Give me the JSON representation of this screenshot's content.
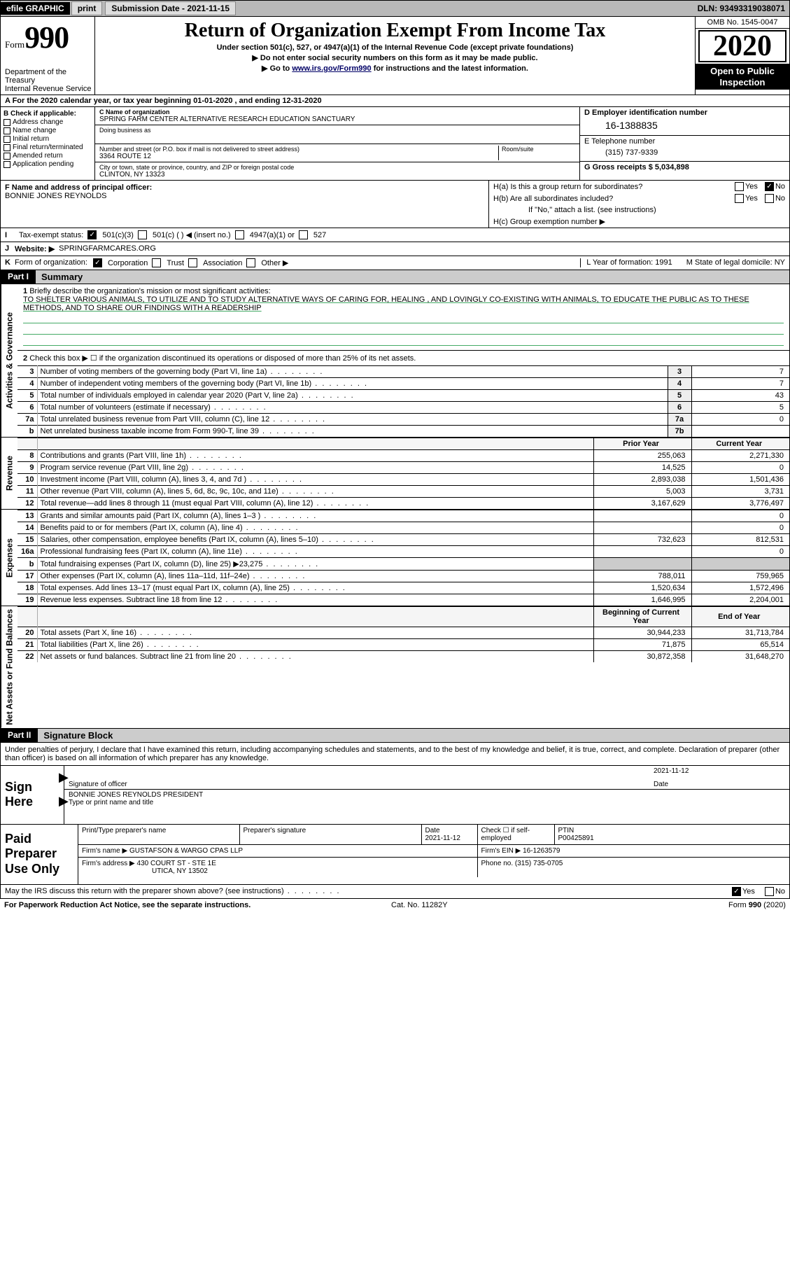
{
  "topbar": {
    "efile": "efile GRAPHIC",
    "print": "print",
    "submission_label": "Submission Date - 2021-11-15",
    "dln": "DLN: 93493319038071"
  },
  "header": {
    "form_small": "Form",
    "form_big": "990",
    "dept1": "Department of the Treasury",
    "dept2": "Internal Revenue Service",
    "title": "Return of Organization Exempt From Income Tax",
    "sub1": "Under section 501(c), 527, or 4947(a)(1) of the Internal Revenue Code (except private foundations)",
    "sub2": "▶ Do not enter social security numbers on this form as it may be made public.",
    "sub3_pre": "▶ Go to ",
    "sub3_link": "www.irs.gov/Form990",
    "sub3_post": " for instructions and the latest information.",
    "omb": "OMB No. 1545-0047",
    "year": "2020",
    "open1": "Open to Public",
    "open2": "Inspection"
  },
  "lineA": "A For the 2020 calendar year, or tax year beginning 01-01-2020    , and ending 12-31-2020",
  "colB": {
    "title": "B Check if applicable:",
    "items": [
      "Address change",
      "Name change",
      "Initial return",
      "Final return/terminated",
      "Amended return",
      "Application pending"
    ]
  },
  "colC": {
    "name_label": "C Name of organization",
    "name": "SPRING FARM CENTER ALTERNATIVE RESEARCH EDUCATION SANCTUARY",
    "dba_label": "Doing business as",
    "street_label": "Number and street (or P.O. box if mail is not delivered to street address)",
    "room_label": "Room/suite",
    "street": "3364 ROUTE 12",
    "city_label": "City or town, state or province, country, and ZIP or foreign postal code",
    "city": "CLINTON, NY  13323"
  },
  "colD": {
    "ein_label": "D Employer identification number",
    "ein": "16-1388835",
    "phone_label": "E Telephone number",
    "phone": "(315) 737-9339",
    "gross_label": "G Gross receipts $ 5,034,898"
  },
  "lineF": {
    "label": "F  Name and address of principal officer:",
    "name": "BONNIE JONES REYNOLDS"
  },
  "lineH": {
    "a": "H(a)  Is this a group return for subordinates?",
    "b": "H(b)  Are all subordinates included?",
    "b_note": "If \"No,\" attach a list. (see instructions)",
    "c": "H(c)  Group exemption number ▶",
    "yes": "Yes",
    "no": "No"
  },
  "lineI": {
    "lbl": "I",
    "text": "Tax-exempt status:",
    "opt1": "501(c)(3)",
    "opt2": "501(c) (  ) ◀ (insert no.)",
    "opt3": "4947(a)(1) or",
    "opt4": "527"
  },
  "lineJ": {
    "lbl": "J",
    "text": "Website: ▶",
    "url": "SPRINGFARMCARES.ORG"
  },
  "lineK": {
    "lbl": "K",
    "text": "Form of organization:",
    "opts": [
      "Corporation",
      "Trust",
      "Association",
      "Other ▶"
    ]
  },
  "lineLM": {
    "l": "L Year of formation: 1991",
    "m": "M State of legal domicile: NY"
  },
  "part1": {
    "header": "Part I",
    "title": "Summary",
    "vert_gov": "Activities & Governance",
    "vert_rev": "Revenue",
    "vert_exp": "Expenses",
    "vert_net": "Net Assets or Fund Balances",
    "line1_label": "1",
    "line1_text": "Briefly describe the organization's mission or most significant activities:",
    "mission": "TO SHELTER VARIOUS ANIMALS, TO UTILIZE AND TO STUDY ALTERNATIVE WAYS OF CARING FOR, HEALING , AND LOVINGLY CO-EXISTING WITH ANIMALS, TO EDUCATE THE PUBLIC AS TO THESE METHODS, AND TO SHARE OUR FINDINGS WITH A READERSHIP",
    "line2": "Check this box ▶ ☐  if the organization discontinued its operations or disposed of more than 25% of its net assets.",
    "rows_gov": [
      {
        "n": "3",
        "label": "Number of voting members of the governing body (Part VI, line 1a)",
        "box": "3",
        "val": "7"
      },
      {
        "n": "4",
        "label": "Number of independent voting members of the governing body (Part VI, line 1b)",
        "box": "4",
        "val": "7"
      },
      {
        "n": "5",
        "label": "Total number of individuals employed in calendar year 2020 (Part V, line 2a)",
        "box": "5",
        "val": "43"
      },
      {
        "n": "6",
        "label": "Total number of volunteers (estimate if necessary)",
        "box": "6",
        "val": "5"
      },
      {
        "n": "7a",
        "label": "Total unrelated business revenue from Part VIII, column (C), line 12",
        "box": "7a",
        "val": "0"
      },
      {
        "n": "b",
        "label": "Net unrelated business taxable income from Form 990-T, line 39",
        "box": "7b",
        "val": ""
      }
    ],
    "col_prior": "Prior Year",
    "col_curr": "Current Year",
    "rows_rev": [
      {
        "n": "8",
        "label": "Contributions and grants (Part VIII, line 1h)",
        "prior": "255,063",
        "curr": "2,271,330"
      },
      {
        "n": "9",
        "label": "Program service revenue (Part VIII, line 2g)",
        "prior": "14,525",
        "curr": "0"
      },
      {
        "n": "10",
        "label": "Investment income (Part VIII, column (A), lines 3, 4, and 7d )",
        "prior": "2,893,038",
        "curr": "1,501,436"
      },
      {
        "n": "11",
        "label": "Other revenue (Part VIII, column (A), lines 5, 6d, 8c, 9c, 10c, and 11e)",
        "prior": "5,003",
        "curr": "3,731"
      },
      {
        "n": "12",
        "label": "Total revenue—add lines 8 through 11 (must equal Part VIII, column (A), line 12)",
        "prior": "3,167,629",
        "curr": "3,776,497"
      }
    ],
    "rows_exp": [
      {
        "n": "13",
        "label": "Grants and similar amounts paid (Part IX, column (A), lines 1–3 )",
        "prior": "",
        "curr": "0"
      },
      {
        "n": "14",
        "label": "Benefits paid to or for members (Part IX, column (A), line 4)",
        "prior": "",
        "curr": "0"
      },
      {
        "n": "15",
        "label": "Salaries, other compensation, employee benefits (Part IX, column (A), lines 5–10)",
        "prior": "732,623",
        "curr": "812,531"
      },
      {
        "n": "16a",
        "label": "Professional fundraising fees (Part IX, column (A), line 11e)",
        "prior": "",
        "curr": "0"
      },
      {
        "n": "b",
        "label": "Total fundraising expenses (Part IX, column (D), line 25) ▶23,275",
        "prior": "shaded",
        "curr": "shaded"
      },
      {
        "n": "17",
        "label": "Other expenses (Part IX, column (A), lines 11a–11d, 11f–24e)",
        "prior": "788,011",
        "curr": "759,965"
      },
      {
        "n": "18",
        "label": "Total expenses. Add lines 13–17 (must equal Part IX, column (A), line 25)",
        "prior": "1,520,634",
        "curr": "1,572,496"
      },
      {
        "n": "19",
        "label": "Revenue less expenses. Subtract line 18 from line 12",
        "prior": "1,646,995",
        "curr": "2,204,001"
      }
    ],
    "col_beg": "Beginning of Current Year",
    "col_end": "End of Year",
    "rows_net": [
      {
        "n": "20",
        "label": "Total assets (Part X, line 16)",
        "prior": "30,944,233",
        "curr": "31,713,784"
      },
      {
        "n": "21",
        "label": "Total liabilities (Part X, line 26)",
        "prior": "71,875",
        "curr": "65,514"
      },
      {
        "n": "22",
        "label": "Net assets or fund balances. Subtract line 21 from line 20",
        "prior": "30,872,358",
        "curr": "31,648,270"
      }
    ]
  },
  "part2": {
    "header": "Part II",
    "title": "Signature Block",
    "decl": "Under penalties of perjury, I declare that I have examined this return, including accompanying schedules and statements, and to the best of my knowledge and belief, it is true, correct, and complete. Declaration of preparer (other than officer) is based on all information of which preparer has any knowledge.",
    "sign_here": "Sign Here",
    "sig_label": "Signature of officer",
    "sig_date": "2021-11-12",
    "date_label": "Date",
    "name_title": "BONNIE JONES REYNOLDS  PRESIDENT",
    "name_title_label": "Type or print name and title",
    "paid": "Paid Preparer Use Only",
    "p_name_label": "Print/Type preparer's name",
    "p_sig_label": "Preparer's signature",
    "p_date_label": "Date",
    "p_date": "2021-11-12",
    "p_check_label": "Check ☐ if self-employed",
    "ptin_label": "PTIN",
    "ptin": "P00425891",
    "firm_name_label": "Firm's name    ▶",
    "firm_name": "GUSTAFSON & WARGO CPAS LLP",
    "firm_ein_label": "Firm's EIN ▶",
    "firm_ein": "16-1263579",
    "firm_addr_label": "Firm's address ▶",
    "firm_addr1": "430 COURT ST - STE 1E",
    "firm_addr2": "UTICA, NY  13502",
    "firm_phone_label": "Phone no.",
    "firm_phone": "(315) 735-0705",
    "discuss": "May the IRS discuss this return with the preparer shown above? (see instructions)",
    "discuss_yes": "Yes",
    "discuss_no": "No"
  },
  "footer": {
    "left": "For Paperwork Reduction Act Notice, see the separate instructions.",
    "mid": "Cat. No. 11282Y",
    "right": "Form 990 (2020)"
  }
}
